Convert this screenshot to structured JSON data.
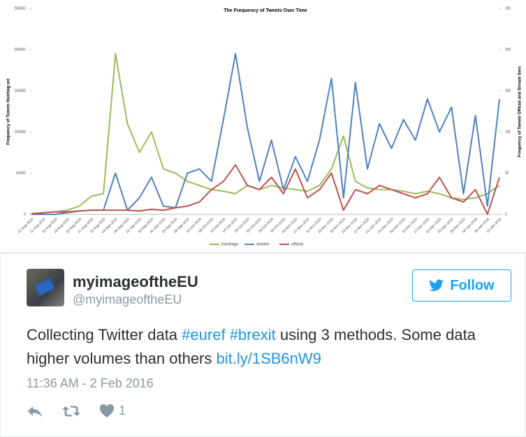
{
  "chart_data": {
    "type": "line",
    "title": "The Frequency of Tweets Over Time",
    "y_label": "Frequency of Tweets Hashtag set",
    "y2_label": "Frequency of Tweets Official and Stream Sets",
    "categories": [
      "07-Aug-2015",
      "11-Aug-2015",
      "15-Aug-2015",
      "19-Aug-2015",
      "23-Aug-2015",
      "27-Aug-2015",
      "31-Aug-2015",
      "04-Sep-2015",
      "08-Sep-2015",
      "12-Sep-2015",
      "16-Sep-2015",
      "20-Sep-2015",
      "24-Sep-2015",
      "28-Sep-2015",
      "02-Oct-2015",
      "06-Oct-2015",
      "10-Oct-2015",
      "14-Oct-2015",
      "18-Oct-2015",
      "22-Oct-2015",
      "26-Oct-2015",
      "30-Oct-2015",
      "03-Nov-2015",
      "07-Nov-2015",
      "11-Nov-2015",
      "15-Nov-2015",
      "19-Nov-2015",
      "23-Nov-2015",
      "27-Nov-2015",
      "01-Dec-2015",
      "05-Dec-2015",
      "09-Dec-2015",
      "13-Dec-2015",
      "17-Dec-2015",
      "21-Dec-2015",
      "25-Dec-2015",
      "29-Dec-2015",
      "02-Jan-2016",
      "06-Jan-2016",
      "10-Jan-2016"
    ],
    "series": [
      {
        "name": "hashtags",
        "color": "#9bbb59",
        "values": [
          1000,
          2000,
          3000,
          5000,
          10000,
          22000,
          25000,
          195000,
          110000,
          75000,
          100000,
          55000,
          50000,
          40000,
          35000,
          30000,
          28000,
          25000,
          35000,
          30000,
          35000,
          32000,
          30000,
          28000,
          35000,
          55000,
          95000,
          40000,
          32000,
          30000,
          30000,
          28000,
          25000,
          28000,
          25000,
          20000,
          18000,
          20000,
          25000,
          35000
        ]
      },
      {
        "name": "stream",
        "color": "#4f81bd",
        "axis": "y2",
        "values": [
          0,
          0,
          0,
          2,
          4,
          5,
          5,
          50,
          5,
          20,
          45,
          10,
          8,
          50,
          55,
          40,
          115,
          195,
          105,
          40,
          90,
          30,
          70,
          40,
          90,
          165,
          20,
          160,
          55,
          110,
          80,
          115,
          90,
          140,
          100,
          130,
          25,
          120,
          10,
          140
        ]
      },
      {
        "name": "official",
        "color": "#c0504d",
        "axis": "y2",
        "values": [
          0,
          2,
          3,
          3,
          4,
          5,
          5,
          5,
          5,
          4,
          6,
          5,
          8,
          10,
          15,
          30,
          40,
          60,
          35,
          30,
          45,
          25,
          55,
          20,
          30,
          50,
          5,
          30,
          25,
          35,
          30,
          25,
          20,
          25,
          45,
          20,
          15,
          30,
          0,
          45
        ]
      }
    ],
    "ylim": [
      0,
      250000
    ],
    "yticks": [
      0,
      50000,
      100000,
      150000,
      200000,
      250000
    ],
    "y2lim": [
      0,
      250
    ],
    "y2ticks": [
      0,
      50,
      100,
      150,
      200,
      250
    ]
  },
  "tweet": {
    "name": "myimageoftheEU",
    "handle": "@myimageoftheEU",
    "follow": "Follow",
    "text": [
      "Collecting Twitter data",
      "#euref",
      "#brexit",
      "using 3 methods. Some data higher volumes than others",
      "bit.ly/1SB6nW9"
    ],
    "timestamp": "11:36 AM - 2 Feb 2016",
    "likes": "1"
  }
}
